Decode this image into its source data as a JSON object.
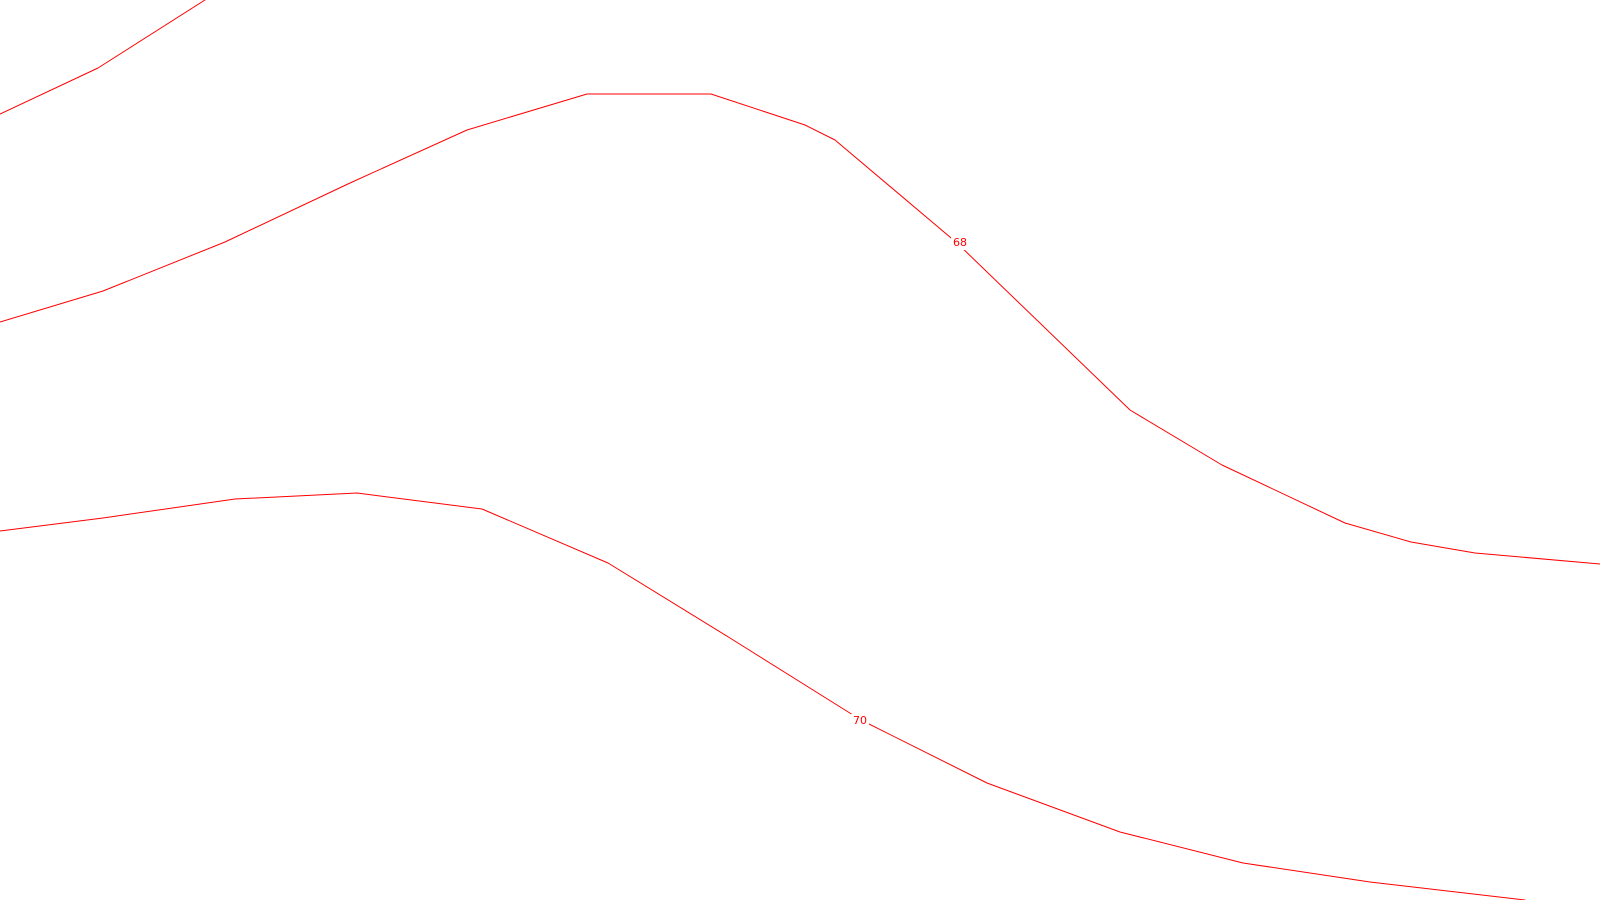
{
  "map": {
    "background_color": "#ffffff",
    "line_color": "#ff0000",
    "label_color": "#ff0000",
    "contours": [
      {
        "id": "upper-contour",
        "label": ""
      },
      {
        "id": "contour-68",
        "label": "68"
      },
      {
        "id": "contour-70",
        "label": "70"
      }
    ]
  }
}
